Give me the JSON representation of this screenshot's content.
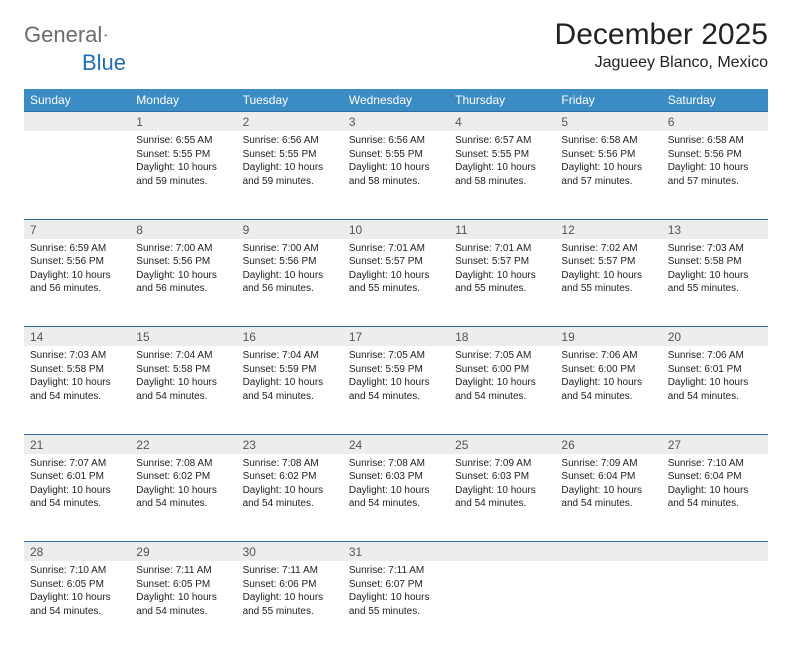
{
  "logo": {
    "text1": "General",
    "text2": "Blue"
  },
  "title": "December 2025",
  "location": "Jagueey Blanco, Mexico",
  "colors": {
    "header_bg": "#3b8bc4",
    "header_text": "#ffffff",
    "daynum_bg": "#eceeee",
    "daynum_text": "#555555",
    "rule": "#2f6fa3",
    "body_text": "#222222",
    "logo_gray": "#6b6b6b",
    "logo_blue": "#1f6fb2"
  },
  "weekdays": [
    "Sunday",
    "Monday",
    "Tuesday",
    "Wednesday",
    "Thursday",
    "Friday",
    "Saturday"
  ],
  "weeks": [
    [
      null,
      {
        "n": "1",
        "sr": "Sunrise: 6:55 AM",
        "ss": "Sunset: 5:55 PM",
        "dl": "Daylight: 10 hours and 59 minutes."
      },
      {
        "n": "2",
        "sr": "Sunrise: 6:56 AM",
        "ss": "Sunset: 5:55 PM",
        "dl": "Daylight: 10 hours and 59 minutes."
      },
      {
        "n": "3",
        "sr": "Sunrise: 6:56 AM",
        "ss": "Sunset: 5:55 PM",
        "dl": "Daylight: 10 hours and 58 minutes."
      },
      {
        "n": "4",
        "sr": "Sunrise: 6:57 AM",
        "ss": "Sunset: 5:55 PM",
        "dl": "Daylight: 10 hours and 58 minutes."
      },
      {
        "n": "5",
        "sr": "Sunrise: 6:58 AM",
        "ss": "Sunset: 5:56 PM",
        "dl": "Daylight: 10 hours and 57 minutes."
      },
      {
        "n": "6",
        "sr": "Sunrise: 6:58 AM",
        "ss": "Sunset: 5:56 PM",
        "dl": "Daylight: 10 hours and 57 minutes."
      }
    ],
    [
      {
        "n": "7",
        "sr": "Sunrise: 6:59 AM",
        "ss": "Sunset: 5:56 PM",
        "dl": "Daylight: 10 hours and 56 minutes."
      },
      {
        "n": "8",
        "sr": "Sunrise: 7:00 AM",
        "ss": "Sunset: 5:56 PM",
        "dl": "Daylight: 10 hours and 56 minutes."
      },
      {
        "n": "9",
        "sr": "Sunrise: 7:00 AM",
        "ss": "Sunset: 5:56 PM",
        "dl": "Daylight: 10 hours and 56 minutes."
      },
      {
        "n": "10",
        "sr": "Sunrise: 7:01 AM",
        "ss": "Sunset: 5:57 PM",
        "dl": "Daylight: 10 hours and 55 minutes."
      },
      {
        "n": "11",
        "sr": "Sunrise: 7:01 AM",
        "ss": "Sunset: 5:57 PM",
        "dl": "Daylight: 10 hours and 55 minutes."
      },
      {
        "n": "12",
        "sr": "Sunrise: 7:02 AM",
        "ss": "Sunset: 5:57 PM",
        "dl": "Daylight: 10 hours and 55 minutes."
      },
      {
        "n": "13",
        "sr": "Sunrise: 7:03 AM",
        "ss": "Sunset: 5:58 PM",
        "dl": "Daylight: 10 hours and 55 minutes."
      }
    ],
    [
      {
        "n": "14",
        "sr": "Sunrise: 7:03 AM",
        "ss": "Sunset: 5:58 PM",
        "dl": "Daylight: 10 hours and 54 minutes."
      },
      {
        "n": "15",
        "sr": "Sunrise: 7:04 AM",
        "ss": "Sunset: 5:58 PM",
        "dl": "Daylight: 10 hours and 54 minutes."
      },
      {
        "n": "16",
        "sr": "Sunrise: 7:04 AM",
        "ss": "Sunset: 5:59 PM",
        "dl": "Daylight: 10 hours and 54 minutes."
      },
      {
        "n": "17",
        "sr": "Sunrise: 7:05 AM",
        "ss": "Sunset: 5:59 PM",
        "dl": "Daylight: 10 hours and 54 minutes."
      },
      {
        "n": "18",
        "sr": "Sunrise: 7:05 AM",
        "ss": "Sunset: 6:00 PM",
        "dl": "Daylight: 10 hours and 54 minutes."
      },
      {
        "n": "19",
        "sr": "Sunrise: 7:06 AM",
        "ss": "Sunset: 6:00 PM",
        "dl": "Daylight: 10 hours and 54 minutes."
      },
      {
        "n": "20",
        "sr": "Sunrise: 7:06 AM",
        "ss": "Sunset: 6:01 PM",
        "dl": "Daylight: 10 hours and 54 minutes."
      }
    ],
    [
      {
        "n": "21",
        "sr": "Sunrise: 7:07 AM",
        "ss": "Sunset: 6:01 PM",
        "dl": "Daylight: 10 hours and 54 minutes."
      },
      {
        "n": "22",
        "sr": "Sunrise: 7:08 AM",
        "ss": "Sunset: 6:02 PM",
        "dl": "Daylight: 10 hours and 54 minutes."
      },
      {
        "n": "23",
        "sr": "Sunrise: 7:08 AM",
        "ss": "Sunset: 6:02 PM",
        "dl": "Daylight: 10 hours and 54 minutes."
      },
      {
        "n": "24",
        "sr": "Sunrise: 7:08 AM",
        "ss": "Sunset: 6:03 PM",
        "dl": "Daylight: 10 hours and 54 minutes."
      },
      {
        "n": "25",
        "sr": "Sunrise: 7:09 AM",
        "ss": "Sunset: 6:03 PM",
        "dl": "Daylight: 10 hours and 54 minutes."
      },
      {
        "n": "26",
        "sr": "Sunrise: 7:09 AM",
        "ss": "Sunset: 6:04 PM",
        "dl": "Daylight: 10 hours and 54 minutes."
      },
      {
        "n": "27",
        "sr": "Sunrise: 7:10 AM",
        "ss": "Sunset: 6:04 PM",
        "dl": "Daylight: 10 hours and 54 minutes."
      }
    ],
    [
      {
        "n": "28",
        "sr": "Sunrise: 7:10 AM",
        "ss": "Sunset: 6:05 PM",
        "dl": "Daylight: 10 hours and 54 minutes."
      },
      {
        "n": "29",
        "sr": "Sunrise: 7:11 AM",
        "ss": "Sunset: 6:05 PM",
        "dl": "Daylight: 10 hours and 54 minutes."
      },
      {
        "n": "30",
        "sr": "Sunrise: 7:11 AM",
        "ss": "Sunset: 6:06 PM",
        "dl": "Daylight: 10 hours and 55 minutes."
      },
      {
        "n": "31",
        "sr": "Sunrise: 7:11 AM",
        "ss": "Sunset: 6:07 PM",
        "dl": "Daylight: 10 hours and 55 minutes."
      },
      null,
      null,
      null
    ]
  ]
}
